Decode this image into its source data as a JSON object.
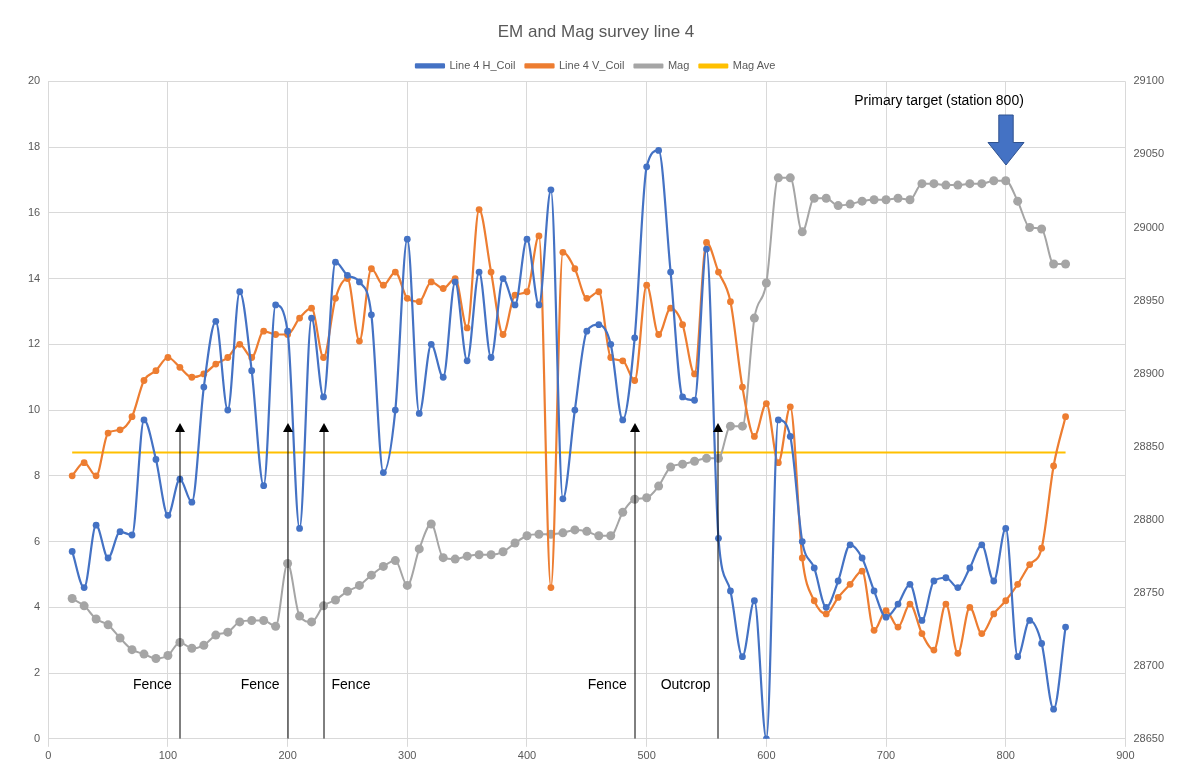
{
  "chart_data": {
    "type": "line",
    "title": "EM and Mag survey line 4",
    "x": [
      20,
      30,
      40,
      50,
      60,
      70,
      80,
      90,
      100,
      110,
      120,
      130,
      140,
      150,
      160,
      170,
      180,
      190,
      200,
      210,
      220,
      230,
      240,
      250,
      260,
      270,
      280,
      290,
      300,
      310,
      320,
      330,
      340,
      350,
      360,
      370,
      380,
      390,
      400,
      410,
      420,
      430,
      440,
      450,
      460,
      470,
      480,
      490,
      500,
      510,
      520,
      530,
      540,
      550,
      560,
      570,
      580,
      590,
      600,
      610,
      620,
      630,
      640,
      650,
      660,
      670,
      680,
      690,
      700,
      710,
      720,
      730,
      740,
      750,
      760,
      770,
      780,
      790,
      800,
      810,
      820,
      830,
      840,
      850
    ],
    "series": [
      {
        "name": "Line 4 H_Coil",
        "color": "#4472c4",
        "marker": "circle",
        "values": [
          5.7,
          4.6,
          6.5,
          5.5,
          6.3,
          6.2,
          9.7,
          8.5,
          6.8,
          7.9,
          7.2,
          10.7,
          12.7,
          10.0,
          13.6,
          11.2,
          7.7,
          13.2,
          12.4,
          6.4,
          12.8,
          10.4,
          14.5,
          14.1,
          13.9,
          12.9,
          8.1,
          10.0,
          15.2,
          9.9,
          12.0,
          11.0,
          13.9,
          11.5,
          14.2,
          11.6,
          14.0,
          13.2,
          15.2,
          13.2,
          16.7,
          7.3,
          10.0,
          12.4,
          12.6,
          12.0,
          9.7,
          12.2,
          17.4,
          17.9,
          14.2,
          10.4,
          10.3,
          14.9,
          6.1,
          4.5,
          2.5,
          4.2,
          0.0,
          9.7,
          9.2,
          6.0,
          5.2,
          4.0,
          4.8,
          5.9,
          5.5,
          4.5,
          3.7,
          4.1,
          4.7,
          3.6,
          4.8,
          4.9,
          4.6,
          5.2,
          5.9,
          4.8,
          6.4,
          2.5,
          3.6,
          2.9,
          0.9,
          3.4
        ]
      },
      {
        "name": "Line 4 V_Coil",
        "color": "#ed7d31",
        "marker": "circle",
        "values": [
          8.0,
          8.4,
          8.0,
          9.3,
          9.4,
          9.8,
          10.9,
          11.2,
          11.6,
          11.3,
          11.0,
          11.1,
          11.4,
          11.6,
          12.0,
          11.6,
          12.4,
          12.3,
          12.3,
          12.8,
          13.1,
          11.6,
          13.4,
          14.0,
          12.1,
          14.3,
          13.8,
          14.2,
          13.4,
          13.3,
          13.9,
          13.7,
          14.0,
          12.5,
          16.1,
          14.2,
          12.3,
          13.5,
          13.6,
          15.3,
          4.6,
          14.8,
          14.3,
          13.4,
          13.6,
          11.6,
          11.5,
          10.9,
          13.8,
          12.3,
          13.1,
          12.6,
          11.1,
          15.1,
          14.2,
          13.3,
          10.7,
          9.2,
          10.2,
          8.4,
          10.1,
          5.5,
          4.2,
          3.8,
          4.3,
          4.7,
          5.1,
          3.3,
          3.9,
          3.4,
          4.1,
          3.2,
          2.7,
          4.1,
          2.6,
          4.0,
          3.2,
          3.8,
          4.2,
          4.7,
          5.3,
          5.8,
          8.3,
          9.8
        ]
      },
      {
        "name": "Mag",
        "color": "#a5a5a5",
        "marker": "circle",
        "axis": "y2",
        "values": [
          28746,
          28741,
          28732,
          28728,
          28719,
          28711,
          28708,
          28705,
          28707,
          28716,
          28712,
          28714,
          28721,
          28723,
          28730,
          28731,
          28731,
          28727,
          28770,
          28734,
          28730,
          28741,
          28745,
          28751,
          28755,
          28762,
          28768,
          28772,
          28755,
          28780,
          28797,
          28774,
          28773,
          28775,
          28776,
          28776,
          28778,
          28784,
          28789,
          28790,
          28790,
          28791,
          28793,
          28792,
          28789,
          28789,
          28805,
          28814,
          28815,
          28823,
          28836,
          28838,
          28840,
          28842,
          28842,
          28864,
          28864,
          28938,
          28962,
          29034,
          29034,
          28997,
          29020,
          29020,
          29015,
          29016,
          29018,
          29019,
          29019,
          29020,
          29019,
          29030,
          29030,
          29029,
          29029,
          29030,
          29030,
          29032,
          29032,
          29018,
          29000,
          28999,
          28975,
          28975
        ]
      },
      {
        "name": "Mag Ave",
        "color": "#ffc000",
        "marker": "none",
        "axis": "y2",
        "x": [
          20,
          850
        ],
        "values": [
          28846,
          28846
        ]
      }
    ],
    "xlim": [
      0,
      900
    ],
    "xticks": [
      0,
      100,
      200,
      300,
      400,
      500,
      600,
      700,
      800,
      900
    ],
    "ylim": [
      0,
      20
    ],
    "yticks": [
      0,
      2,
      4,
      6,
      8,
      10,
      12,
      14,
      16,
      18,
      20
    ],
    "y2lim": [
      28650,
      29100
    ],
    "y2ticks": [
      28650,
      28700,
      28750,
      28800,
      28850,
      28900,
      28950,
      29000,
      29050,
      29100
    ],
    "grid": true,
    "legend": "top",
    "ref_lines": [
      {
        "axis": "x",
        "value": 110,
        "label": "Fence"
      },
      {
        "axis": "x",
        "value": 200,
        "label": "Fence"
      },
      {
        "axis": "x",
        "value": 230,
        "label": "Fence"
      },
      {
        "axis": "x",
        "value": 490,
        "label": "Fence"
      },
      {
        "axis": "x",
        "value": 560,
        "label": "Outcrop"
      }
    ],
    "annotations": [
      "Primary target (station 800)"
    ]
  }
}
